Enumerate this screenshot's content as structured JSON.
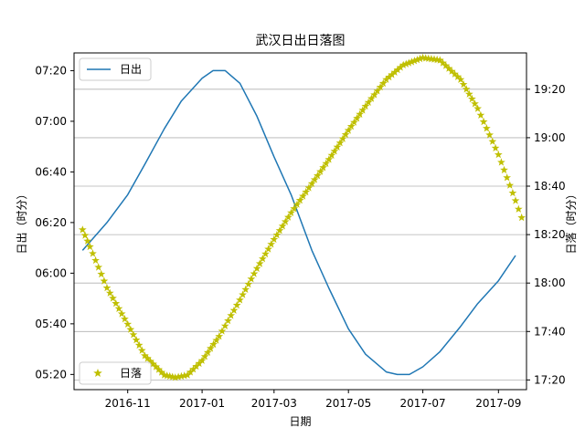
{
  "chart_data": {
    "type": "line",
    "title": "武汉日出日落图",
    "xlabel": "日期",
    "ylabel_left": "日出（时分）",
    "ylabel_right": "日落（时分）",
    "x_range": [
      "2016-09-18",
      "2017-09-24"
    ],
    "x_ticks": [
      "2016-11",
      "2017-01",
      "2017-03",
      "2017-05",
      "2017-07",
      "2017-09"
    ],
    "y_left_range": [
      "05:14",
      "07:27"
    ],
    "y_left_ticks": [
      "05:20",
      "05:40",
      "06:00",
      "06:20",
      "06:40",
      "07:00",
      "07:20"
    ],
    "y_right_range": [
      "17:16",
      "19:35"
    ],
    "y_right_ticks": [
      "17:20",
      "17:40",
      "18:00",
      "18:20",
      "18:40",
      "19:00",
      "19:20"
    ],
    "grid": "horizontal, right axis",
    "series": [
      {
        "name": "日出",
        "axis": "left",
        "color": "#1f77b4",
        "marker": "none",
        "legend": "upper-left",
        "points": [
          [
            "2016-09-25",
            "06:09"
          ],
          [
            "2016-10-15",
            "06:20"
          ],
          [
            "2016-11-01",
            "06:31"
          ],
          [
            "2016-11-15",
            "06:43"
          ],
          [
            "2016-12-01",
            "06:57"
          ],
          [
            "2016-12-15",
            "07:08"
          ],
          [
            "2017-01-01",
            "07:17"
          ],
          [
            "2017-01-10",
            "07:20"
          ],
          [
            "2017-01-20",
            "07:20"
          ],
          [
            "2017-02-01",
            "07:15"
          ],
          [
            "2017-02-15",
            "07:02"
          ],
          [
            "2017-03-01",
            "06:46"
          ],
          [
            "2017-03-15",
            "06:31"
          ],
          [
            "2017-04-01",
            "06:09"
          ],
          [
            "2017-04-15",
            "05:54"
          ],
          [
            "2017-05-01",
            "05:38"
          ],
          [
            "2017-05-15",
            "05:28"
          ],
          [
            "2017-06-01",
            "05:21"
          ],
          [
            "2017-06-10",
            "05:20"
          ],
          [
            "2017-06-20",
            "05:20"
          ],
          [
            "2017-07-01",
            "05:23"
          ],
          [
            "2017-07-15",
            "05:29"
          ],
          [
            "2017-08-01",
            "05:39"
          ],
          [
            "2017-08-15",
            "05:48"
          ],
          [
            "2017-09-01",
            "05:57"
          ],
          [
            "2017-09-15",
            "06:07"
          ]
        ]
      },
      {
        "name": "日落",
        "axis": "right",
        "color": "#bfbf00",
        "marker": "star",
        "legend": "lower-left",
        "points": [
          [
            "2016-09-25",
            "18:22"
          ],
          [
            "2016-10-01",
            "18:15"
          ],
          [
            "2016-10-15",
            "17:58"
          ],
          [
            "2016-11-01",
            "17:43"
          ],
          [
            "2016-11-15",
            "17:30"
          ],
          [
            "2016-12-01",
            "17:22"
          ],
          [
            "2016-12-10",
            "17:21"
          ],
          [
            "2016-12-20",
            "17:22"
          ],
          [
            "2017-01-01",
            "17:28"
          ],
          [
            "2017-01-15",
            "17:38"
          ],
          [
            "2017-02-01",
            "17:53"
          ],
          [
            "2017-02-15",
            "18:06"
          ],
          [
            "2017-03-01",
            "18:18"
          ],
          [
            "2017-03-15",
            "18:29"
          ],
          [
            "2017-04-01",
            "18:41"
          ],
          [
            "2017-04-15",
            "18:51"
          ],
          [
            "2017-05-01",
            "19:03"
          ],
          [
            "2017-05-15",
            "19:13"
          ],
          [
            "2017-06-01",
            "19:24"
          ],
          [
            "2017-06-15",
            "19:30"
          ],
          [
            "2017-07-01",
            "19:33"
          ],
          [
            "2017-07-15",
            "19:32"
          ],
          [
            "2017-08-01",
            "19:24"
          ],
          [
            "2017-08-15",
            "19:12"
          ],
          [
            "2017-09-01",
            "18:53"
          ],
          [
            "2017-09-15",
            "18:34"
          ],
          [
            "2017-09-20",
            "18:27"
          ]
        ]
      }
    ]
  }
}
